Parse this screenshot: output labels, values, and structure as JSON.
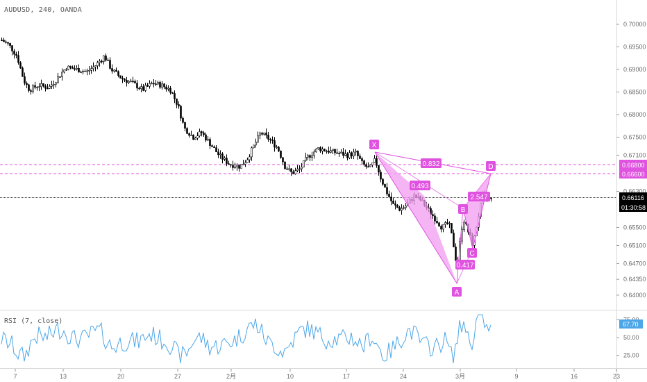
{
  "header": {
    "symbol_label": "AUDUSD, 240, OANDA",
    "rsi_label": "RSI (7, close)"
  },
  "price_axis": {
    "ticks": [
      "0.70000",
      "0.69500",
      "0.69000",
      "0.68500",
      "0.68000",
      "0.67500",
      "0.67100",
      "0.66300",
      "0.65500",
      "0.65100",
      "0.64700",
      "0.64350",
      "0.64000"
    ],
    "tick_values": [
      0.7,
      0.695,
      0.69,
      0.685,
      0.68,
      0.675,
      0.671,
      0.663,
      0.655,
      0.651,
      0.647,
      0.6435,
      0.64
    ],
    "tag_0668": "0.66800",
    "tag_0666": "0.66600",
    "tag_last": "0.66116",
    "tag_countdown": "01:30:58",
    "level_0668_value": 0.668,
    "level_0666_value": 0.666,
    "last_value": 0.66116
  },
  "rsi_axis": {
    "ticks": [
      "75.00",
      "50.00",
      "25.00"
    ],
    "tick_values": [
      75,
      50,
      25
    ],
    "current": "67.70",
    "current_value": 67.7
  },
  "time_axis": {
    "labels": [
      "7",
      "13",
      "20",
      "27",
      "2月",
      "10",
      "17",
      "24",
      "3月",
      "9",
      "16",
      "23"
    ]
  },
  "pattern": {
    "points": {
      "X": "X",
      "A": "A",
      "B": "B",
      "C": "C",
      "D": "D"
    },
    "ratios": {
      "xb": "0.493",
      "ac": "0.417",
      "bd": "2.547",
      "xd": "0.832"
    }
  },
  "colors": {
    "pattern": "#e052e0",
    "pattern_fill": "#f29cf2",
    "rsi_line": "#4ca6e8",
    "candle": "#000000",
    "level_line": "#e052e0",
    "tag_last_bg": "#000000"
  },
  "chart_data": {
    "type": "candlestick",
    "symbol": "AUDUSD",
    "timeframe": "240",
    "ylim": [
      0.6383,
      0.702
    ],
    "harmonic_pattern": {
      "X": 0.671,
      "A": 0.644,
      "B": 0.6568,
      "C": 0.6508,
      "D": 0.6665,
      "ratios": {
        "XB": 0.493,
        "AC": 0.417,
        "BD": 2.547,
        "XD": 0.832
      }
    },
    "rsi_ylim": [
      10,
      85
    ]
  }
}
